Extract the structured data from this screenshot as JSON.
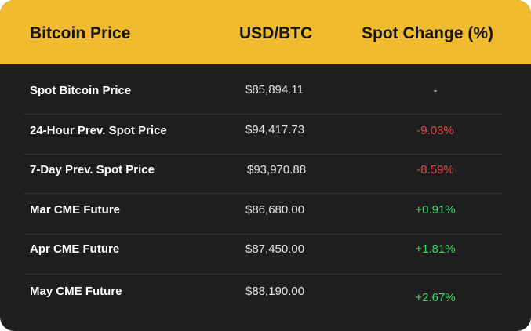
{
  "header": {
    "col_name": "Bitcoin Price",
    "col_price": "USD/BTC",
    "col_change": "Spot Change (%)"
  },
  "colors": {
    "header_bg": "#f0bb2e",
    "body_bg": "#1e1e1e",
    "negative": "#e34b4b",
    "positive": "#3ddc6a",
    "neutral": "#e6e6e6"
  },
  "rows": [
    {
      "name": "Spot Bitcoin Price",
      "price": "$85,894.11",
      "change": "-",
      "sentiment": "neutral"
    },
    {
      "name": "24-Hour Prev. Spot Price",
      "price": "$94,417.73",
      "change": "-9.03%",
      "sentiment": "negative"
    },
    {
      "name": "7-Day Prev. Spot Price",
      "price": "$93,970.88",
      "change": "-8.59%",
      "sentiment": "negative"
    },
    {
      "name": "Mar CME Future",
      "price": "$86,680.00",
      "change": "+0.91%",
      "sentiment": "positive"
    },
    {
      "name": "Apr CME Future",
      "price": "$87,450.00",
      "change": "+1.81%",
      "sentiment": "positive"
    },
    {
      "name": "May CME Future",
      "price": "$88,190.00",
      "change": "+2.67%",
      "sentiment": "positive"
    }
  ]
}
